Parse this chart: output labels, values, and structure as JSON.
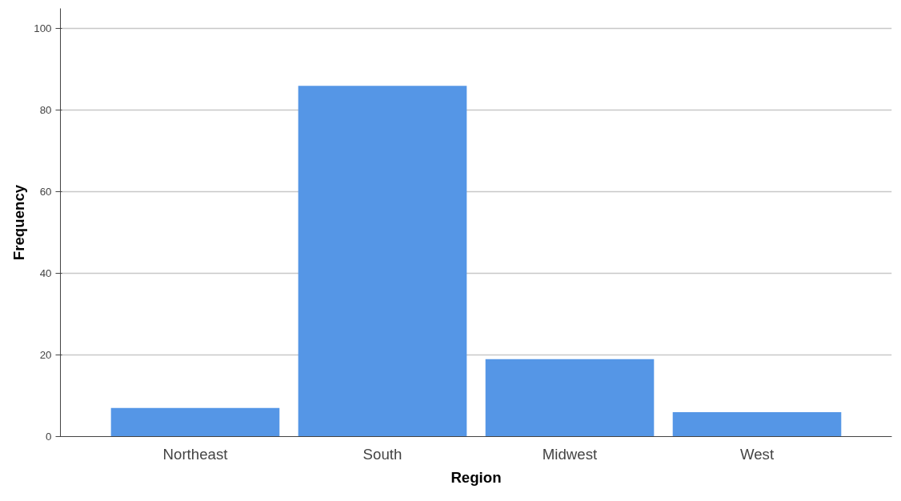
{
  "chart_data": {
    "type": "bar",
    "xlabel": "Region",
    "ylabel": "Frequency",
    "categories": [
      "Northeast",
      "South",
      "Midwest",
      "West"
    ],
    "values": [
      7,
      86,
      19,
      6
    ],
    "color": "#5596e6",
    "ylim": [
      0,
      105
    ],
    "yticks": [
      0,
      20,
      40,
      60,
      80,
      100
    ],
    "grid": "y"
  }
}
